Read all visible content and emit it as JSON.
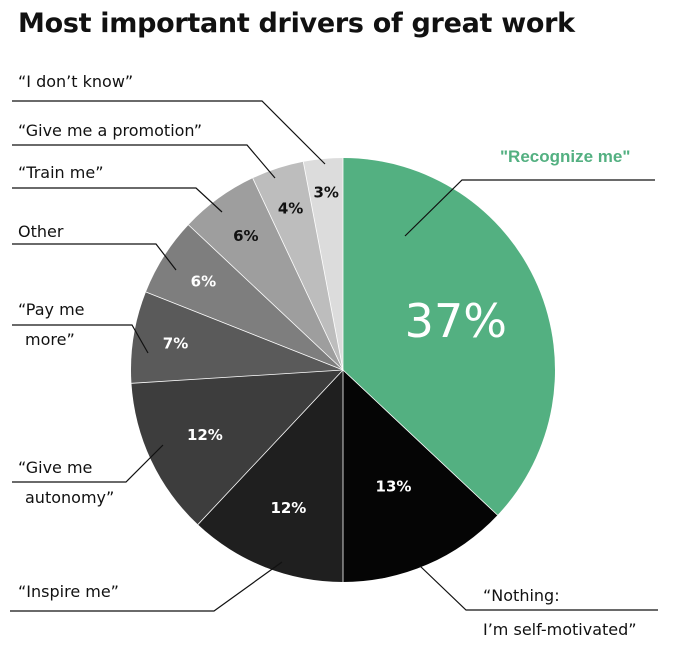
{
  "chart_data": {
    "type": "pie",
    "title": "Most important drivers of great work",
    "slices": [
      {
        "label": "\"Recognize me\"",
        "label_lines": [
          "\"Recognize me\""
        ],
        "value": 37,
        "value_label": "37%",
        "color": "#53b081",
        "text_color": "#ffffff",
        "highlight": true
      },
      {
        "label": "“Nothing: I’m self-motivated”",
        "label_lines": [
          "“Nothing:",
          "I’m self-motivated”"
        ],
        "value": 13,
        "value_label": "13%",
        "color": "#050505",
        "text_color": "#ffffff"
      },
      {
        "label": "“Inspire me”",
        "label_lines": [
          "“Inspire me”"
        ],
        "value": 12,
        "value_label": "12%",
        "color": "#1f1f1f",
        "text_color": "#ffffff"
      },
      {
        "label": "“Give me autonomy”",
        "label_lines": [
          "“Give me",
          "autonomy”"
        ],
        "value": 12,
        "value_label": "12%",
        "color": "#3d3d3d",
        "text_color": "#ffffff"
      },
      {
        "label": "“Pay me more”",
        "label_lines": [
          "“Pay me",
          "more”"
        ],
        "value": 7,
        "value_label": "7%",
        "color": "#5a5a5a",
        "text_color": "#ffffff"
      },
      {
        "label": "Other",
        "label_lines": [
          "Other"
        ],
        "value": 6,
        "value_label": "6%",
        "color": "#7e7e7e",
        "text_color": "#ffffff"
      },
      {
        "label": "“Train me”",
        "label_lines": [
          "“Train me”"
        ],
        "value": 6,
        "value_label": "6%",
        "color": "#9e9e9e",
        "text_color": "#111111"
      },
      {
        "label": "“Give me a promotion”",
        "label_lines": [
          "“Give me a promotion”"
        ],
        "value": 4,
        "value_label": "4%",
        "color": "#bdbdbd",
        "text_color": "#111111"
      },
      {
        "label": "“I don’t know”",
        "label_lines": [
          "“I don’t know”"
        ],
        "value": 3,
        "value_label": "3%",
        "color": "#dcdcdc",
        "text_color": "#111111"
      }
    ]
  }
}
